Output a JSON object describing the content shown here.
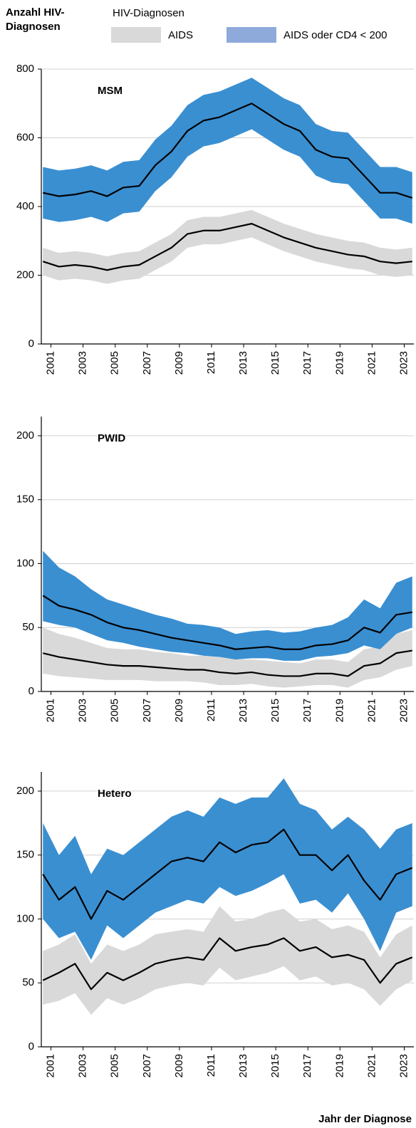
{
  "y_label": "Anzahl HIV-Diagnosen",
  "x_label": "Jahr der Diagnose",
  "legend": {
    "title": "HIV-Diagnosen",
    "entries": [
      {
        "name": "AIDS",
        "color": "#d9d9d9"
      },
      {
        "name": "AIDS oder CD4 < 200",
        "color": "#8eaadb"
      }
    ]
  },
  "chart_data": [
    {
      "type": "band",
      "title": "MSM",
      "grid": true,
      "x": [
        2000.5,
        2001.5,
        2002.5,
        2003.5,
        2004.5,
        2005.5,
        2006.5,
        2007.5,
        2008.5,
        2009.5,
        2010.5,
        2011.5,
        2012.5,
        2013.5,
        2014.5,
        2015.5,
        2016.5,
        2017.5,
        2018.5,
        2019.5,
        2020.5,
        2021.5,
        2022.5,
        2023.5
      ],
      "xlim": [
        2000.4,
        2023.6
      ],
      "xticks": [
        2001,
        2003,
        2005,
        2007,
        2009,
        2011,
        2013,
        2015,
        2017,
        2019,
        2021,
        2023
      ],
      "ylim": [
        0,
        800
      ],
      "yticks": [
        0,
        200,
        400,
        600,
        800
      ],
      "series": [
        {
          "color": "#d9d9d9",
          "values": [
            240,
            225,
            230,
            225,
            215,
            225,
            230,
            255,
            280,
            320,
            330,
            330,
            340,
            350,
            330,
            310,
            295,
            280,
            270,
            260,
            255,
            240,
            235,
            240
          ],
          "lower": [
            200,
            185,
            190,
            185,
            175,
            185,
            190,
            215,
            240,
            280,
            290,
            290,
            300,
            310,
            290,
            270,
            255,
            240,
            230,
            220,
            215,
            200,
            195,
            200
          ],
          "upper": [
            280,
            265,
            270,
            265,
            255,
            265,
            270,
            295,
            320,
            360,
            370,
            370,
            380,
            390,
            370,
            350,
            335,
            320,
            310,
            300,
            295,
            280,
            275,
            280
          ]
        },
        {
          "color": "#3a8fd1",
          "values": [
            440,
            430,
            435,
            445,
            430,
            455,
            460,
            520,
            560,
            620,
            650,
            660,
            680,
            700,
            670,
            640,
            620,
            565,
            545,
            540,
            490,
            440,
            440,
            425
          ],
          "lower": [
            365,
            355,
            360,
            370,
            355,
            380,
            385,
            445,
            485,
            545,
            575,
            585,
            605,
            625,
            595,
            565,
            545,
            490,
            470,
            465,
            415,
            365,
            365,
            350
          ],
          "upper": [
            515,
            505,
            510,
            520,
            505,
            530,
            535,
            595,
            635,
            695,
            725,
            735,
            755,
            775,
            745,
            715,
            695,
            640,
            620,
            615,
            565,
            515,
            515,
            500
          ]
        }
      ]
    },
    {
      "type": "band",
      "title": "PWID",
      "grid": true,
      "x": [
        2000.5,
        2001.5,
        2002.5,
        2003.5,
        2004.5,
        2005.5,
        2006.5,
        2007.5,
        2008.5,
        2009.5,
        2010.5,
        2011.5,
        2012.5,
        2013.5,
        2014.5,
        2015.5,
        2016.5,
        2017.5,
        2018.5,
        2019.5,
        2020.5,
        2021.5,
        2022.5,
        2023.5
      ],
      "xlim": [
        2000.4,
        2023.6
      ],
      "xticks": [
        2001,
        2003,
        2005,
        2007,
        2009,
        2011,
        2013,
        2015,
        2017,
        2019,
        2021,
        2023
      ],
      "ylim": [
        0,
        215
      ],
      "yticks": [
        0,
        50,
        100,
        150,
        200
      ],
      "series": [
        {
          "color": "#d9d9d9",
          "values": [
            30,
            27,
            25,
            23,
            21,
            20,
            20,
            19,
            18,
            17,
            17,
            15,
            14,
            15,
            13,
            12,
            12,
            14,
            14,
            12,
            20,
            22,
            30,
            32
          ],
          "lower": [
            14,
            12,
            11,
            10,
            9,
            9,
            9,
            8,
            8,
            8,
            7,
            5,
            5,
            6,
            4,
            3,
            4,
            5,
            5,
            3,
            9,
            11,
            17,
            20
          ],
          "upper": [
            50,
            45,
            42,
            38,
            34,
            33,
            33,
            31,
            30,
            28,
            28,
            27,
            25,
            25,
            24,
            23,
            22,
            25,
            25,
            23,
            33,
            35,
            45,
            48
          ]
        },
        {
          "color": "#3a8fd1",
          "values": [
            75,
            67,
            64,
            60,
            54,
            50,
            48,
            45,
            42,
            40,
            38,
            36,
            33,
            34,
            35,
            33,
            33,
            36,
            37,
            40,
            50,
            46,
            60,
            62
          ],
          "lower": [
            55,
            52,
            50,
            45,
            40,
            38,
            35,
            33,
            31,
            30,
            28,
            27,
            25,
            26,
            26,
            24,
            24,
            27,
            28,
            30,
            36,
            33,
            45,
            50
          ],
          "upper": [
            110,
            97,
            90,
            80,
            72,
            68,
            64,
            60,
            57,
            53,
            52,
            50,
            45,
            47,
            48,
            46,
            47,
            50,
            52,
            58,
            72,
            65,
            85,
            90
          ]
        }
      ]
    },
    {
      "type": "band",
      "title": "Hetero",
      "grid": true,
      "x": [
        2000.5,
        2001.5,
        2002.5,
        2003.5,
        2004.5,
        2005.5,
        2006.5,
        2007.5,
        2008.5,
        2009.5,
        2010.5,
        2011.5,
        2012.5,
        2013.5,
        2014.5,
        2015.5,
        2016.5,
        2017.5,
        2018.5,
        2019.5,
        2020.5,
        2021.5,
        2022.5,
        2023.5
      ],
      "xlim": [
        2000.4,
        2023.6
      ],
      "xticks": [
        2001,
        2003,
        2005,
        2007,
        2009,
        2011,
        2013,
        2015,
        2017,
        2019,
        2021,
        2023
      ],
      "ylim": [
        0,
        215
      ],
      "yticks": [
        0,
        50,
        100,
        150,
        200
      ],
      "series": [
        {
          "color": "#d9d9d9",
          "values": [
            52,
            58,
            65,
            45,
            58,
            52,
            58,
            65,
            68,
            70,
            68,
            85,
            75,
            78,
            80,
            85,
            75,
            78,
            70,
            72,
            68,
            50,
            65,
            70
          ],
          "lower": [
            33,
            36,
            42,
            25,
            38,
            33,
            38,
            45,
            48,
            50,
            48,
            62,
            52,
            55,
            58,
            63,
            52,
            55,
            48,
            50,
            45,
            32,
            45,
            52
          ],
          "upper": [
            75,
            80,
            88,
            65,
            80,
            75,
            80,
            88,
            90,
            92,
            90,
            110,
            98,
            100,
            105,
            108,
            98,
            100,
            92,
            95,
            90,
            70,
            88,
            95
          ]
        },
        {
          "color": "#3a8fd1",
          "values": [
            135,
            115,
            125,
            100,
            122,
            115,
            125,
            135,
            145,
            148,
            145,
            160,
            152,
            158,
            160,
            170,
            150,
            150,
            138,
            150,
            130,
            115,
            135,
            140
          ],
          "lower": [
            100,
            85,
            90,
            68,
            95,
            85,
            95,
            105,
            110,
            115,
            112,
            125,
            118,
            122,
            128,
            135,
            112,
            115,
            105,
            120,
            100,
            75,
            105,
            110
          ],
          "upper": [
            175,
            150,
            165,
            135,
            155,
            150,
            160,
            170,
            180,
            185,
            180,
            195,
            190,
            195,
            195,
            210,
            190,
            185,
            170,
            180,
            170,
            155,
            170,
            175
          ]
        }
      ]
    }
  ]
}
